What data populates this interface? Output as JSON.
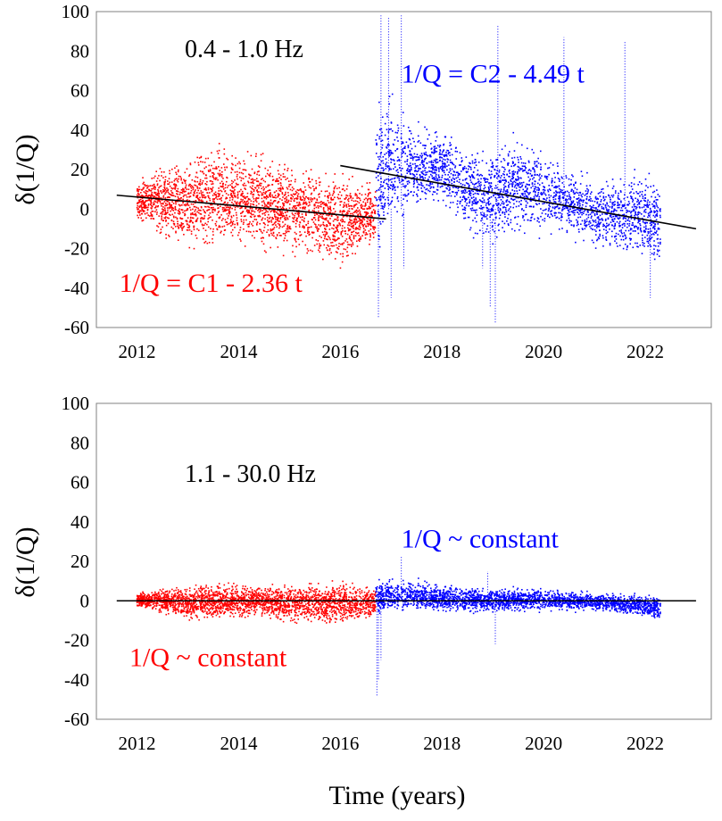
{
  "colors": {
    "before": "#ff0000",
    "after": "#0000ff",
    "fit": "#000000",
    "frame": "#808080"
  },
  "chart_data": [
    {
      "type": "scatter",
      "id": "top",
      "band_label": "0.4 - 1.0 Hz",
      "ylabel": "δ(1/Q)",
      "xlabel": "",
      "xlim": [
        2011.2,
        2023.3
      ],
      "ylim": [
        -60,
        100
      ],
      "yticks": [
        "100",
        "80",
        "60",
        "40",
        "20",
        "0",
        "-20",
        "-40",
        "-60"
      ],
      "xticks": [
        "2012",
        "2014",
        "2016",
        "2018",
        "2020",
        "2022"
      ],
      "grid": false,
      "split_year": 2016.7,
      "series": [
        {
          "color": "#ff0000",
          "x_range": [
            2012.0,
            2016.7
          ],
          "envelope": [
            [
              2012.0,
              -6,
              14
            ],
            [
              2012.5,
              -14,
              22
            ],
            [
              2013.0,
              -20,
              24
            ],
            [
              2013.5,
              -20,
              32
            ],
            [
              2014.0,
              -18,
              28
            ],
            [
              2014.5,
              -20,
              26
            ],
            [
              2015.0,
              -22,
              22
            ],
            [
              2015.5,
              -24,
              20
            ],
            [
              2016.0,
              -28,
              18
            ],
            [
              2016.7,
              -18,
              12
            ]
          ]
        },
        {
          "color": "#0000ff",
          "x_range": [
            2016.7,
            2022.3
          ],
          "envelope": [
            [
              2016.7,
              -20,
              50
            ],
            [
              2017.0,
              -10,
              55
            ],
            [
              2017.5,
              0,
              40
            ],
            [
              2018.0,
              2,
              40
            ],
            [
              2018.5,
              -10,
              30
            ],
            [
              2019.0,
              -15,
              30
            ],
            [
              2019.5,
              -10,
              35
            ],
            [
              2020.0,
              -12,
              28
            ],
            [
              2020.5,
              -12,
              20
            ],
            [
              2021.0,
              -20,
              15
            ],
            [
              2021.5,
              -22,
              15
            ],
            [
              2022.0,
              -25,
              20
            ],
            [
              2022.3,
              -30,
              12
            ]
          ],
          "spikes": [
            [
              2016.75,
              -55
            ],
            [
              2016.8,
              98
            ],
            [
              2016.95,
              97
            ],
            [
              2017.0,
              -45
            ],
            [
              2017.2,
              98
            ],
            [
              2017.25,
              -30
            ],
            [
              2018.8,
              -30
            ],
            [
              2018.95,
              -50
            ],
            [
              2019.05,
              -58
            ],
            [
              2019.1,
              93
            ],
            [
              2020.4,
              87
            ],
            [
              2021.6,
              85
            ],
            [
              2022.1,
              -45
            ]
          ]
        }
      ],
      "fit_lines": [
        {
          "from": [
            2011.6,
            7
          ],
          "to": [
            2016.9,
            -5
          ]
        },
        {
          "from": [
            2016.0,
            22
          ],
          "to": [
            2023.0,
            -10
          ]
        }
      ],
      "annotations": [
        {
          "text": "1/Q = C1 - 2.36 t",
          "color": "#ff0000",
          "x": 2011.65,
          "y": -42
        },
        {
          "text": "1/Q = C2 - 4.49 t",
          "color": "#0000ff",
          "x": 2017.2,
          "y": 64
        }
      ]
    },
    {
      "type": "scatter",
      "id": "bottom",
      "band_label": "1.1 - 30.0 Hz",
      "ylabel": "δ(1/Q)",
      "xlabel": "Time (years)",
      "xlim": [
        2011.2,
        2023.3
      ],
      "ylim": [
        -60,
        100
      ],
      "yticks": [
        "100",
        "80",
        "60",
        "40",
        "20",
        "0",
        "-20",
        "-40",
        "-60"
      ],
      "xticks": [
        "2012",
        "2014",
        "2016",
        "2018",
        "2020",
        "2022"
      ],
      "grid": false,
      "split_year": 2016.7,
      "series": [
        {
          "color": "#ff0000",
          "x_range": [
            2012.0,
            2016.7
          ],
          "envelope": [
            [
              2012.0,
              -3,
              4
            ],
            [
              2013.0,
              -10,
              8
            ],
            [
              2014.0,
              -8,
              8
            ],
            [
              2015.0,
              -10,
              8
            ],
            [
              2016.0,
              -12,
              10
            ],
            [
              2016.7,
              -8,
              6
            ]
          ]
        },
        {
          "color": "#0000ff",
          "x_range": [
            2016.7,
            2022.3
          ],
          "envelope": [
            [
              2016.7,
              -6,
              10
            ],
            [
              2017.5,
              -5,
              10
            ],
            [
              2018.0,
              -6,
              8
            ],
            [
              2019.0,
              -5,
              6
            ],
            [
              2020.0,
              -5,
              6
            ],
            [
              2021.0,
              -5,
              4
            ],
            [
              2022.0,
              -8,
              3
            ],
            [
              2022.3,
              -10,
              2
            ]
          ],
          "spikes": [
            [
              2016.72,
              -48
            ],
            [
              2016.75,
              -40
            ],
            [
              2016.8,
              -30
            ],
            [
              2017.2,
              23
            ],
            [
              2018.9,
              15
            ],
            [
              2019.05,
              -22
            ]
          ]
        }
      ],
      "fit_lines": [
        {
          "from": [
            2011.6,
            0
          ],
          "to": [
            2023.0,
            0
          ]
        }
      ],
      "annotations": [
        {
          "text": "1/Q ~ constant",
          "color": "#ff0000",
          "x": 2011.85,
          "y": -33
        },
        {
          "text": "1/Q ~ constant",
          "color": "#0000ff",
          "x": 2017.2,
          "y": 27
        }
      ]
    }
  ]
}
